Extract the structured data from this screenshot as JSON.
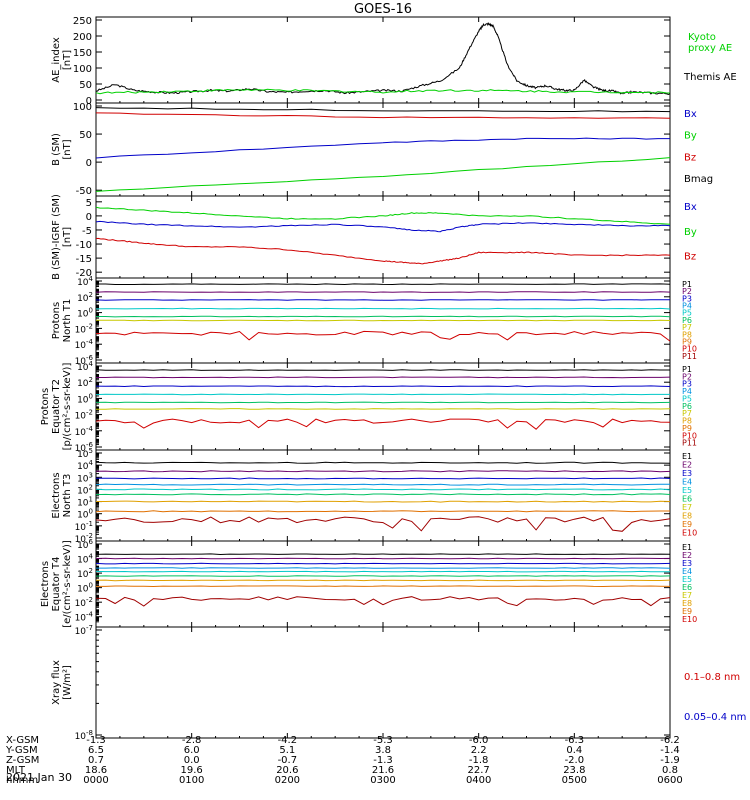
{
  "title": "GOES-16",
  "date_label": "2021 Jan 30",
  "colors": {
    "black": "#000000",
    "green": "#00d000",
    "blue": "#0000c8",
    "red": "#d00000",
    "p_series": [
      "#000000",
      "#6a006a",
      "#0000c8",
      "#0090e0",
      "#00c8c8",
      "#00c060",
      "#c8c800",
      "#e0a000",
      "#e07000",
      "#d00000",
      "#a00000"
    ],
    "e_series": [
      "#000000",
      "#6a006a",
      "#0000c8",
      "#0090e0",
      "#00c8c8",
      "#00c060",
      "#c8c800",
      "#e0a000",
      "#e07000",
      "#d00000",
      "#a00000"
    ]
  },
  "chart_data": [
    {
      "id": "ae",
      "type": "line",
      "ylabel": "AE_index\n[nT]",
      "ylim": [
        0,
        250
      ],
      "yticks": [
        0,
        50,
        100,
        150,
        200,
        250
      ],
      "legend": [
        {
          "name": "Kyoto\nproxy AE",
          "color": "#00d000"
        },
        {
          "name": "Themis AE",
          "color": "#000000"
        }
      ],
      "series": [
        {
          "name": "Themis AE",
          "color": "#000000",
          "x": [
            0,
            0.2,
            0.4,
            0.6,
            0.8,
            1.0,
            1.2,
            1.4,
            1.6,
            1.8,
            2.0,
            2.2,
            2.4,
            2.6,
            2.8,
            3.0,
            3.2,
            3.4,
            3.6,
            3.8,
            3.9,
            4.0,
            4.05,
            4.1,
            4.15,
            4.2,
            4.3,
            4.4,
            4.5,
            4.6,
            4.7,
            4.8,
            4.9,
            5.0,
            5.1,
            5.2,
            5.3,
            5.4,
            5.5,
            5.6,
            5.8,
            6.0
          ],
          "y": [
            28,
            48,
            30,
            25,
            22,
            26,
            30,
            28,
            35,
            26,
            24,
            28,
            30,
            22,
            26,
            30,
            28,
            45,
            60,
            100,
            160,
            215,
            235,
            238,
            232,
            200,
            110,
            60,
            45,
            38,
            45,
            35,
            30,
            30,
            62,
            40,
            30,
            28,
            20,
            25,
            22,
            20
          ]
        },
        {
          "name": "Kyoto proxy AE",
          "color": "#00d000",
          "x": [
            0,
            0.5,
            1.0,
            1.5,
            2.0,
            2.5,
            3.0,
            3.5,
            4.0,
            4.5,
            5.0,
            5.5,
            6.0
          ],
          "y": [
            22,
            25,
            28,
            32,
            30,
            28,
            25,
            30,
            30,
            28,
            25,
            25,
            22
          ]
        }
      ]
    },
    {
      "id": "bsm",
      "type": "line",
      "ylabel": "B (SM)\n[nT]",
      "ylim": [
        -55,
        100
      ],
      "yticks": [
        -50,
        0,
        50,
        100
      ],
      "legend": [
        {
          "name": "Bx",
          "color": "#0000c8"
        },
        {
          "name": "By",
          "color": "#00d000"
        },
        {
          "name": "Bz",
          "color": "#d00000"
        },
        {
          "name": "Bmag",
          "color": "#000000"
        }
      ],
      "series": [
        {
          "name": "Bmag",
          "color": "#000000",
          "x": [
            0,
            3,
            6
          ],
          "y": [
            97,
            92,
            90
          ]
        },
        {
          "name": "Bz",
          "color": "#d00000",
          "x": [
            0,
            3,
            6
          ],
          "y": [
            87,
            80,
            78
          ]
        },
        {
          "name": "Bx",
          "color": "#0000c8",
          "x": [
            0,
            3,
            4.5,
            6
          ],
          "y": [
            8,
            35,
            42,
            42
          ]
        },
        {
          "name": "By",
          "color": "#00d000",
          "x": [
            0,
            3,
            6
          ],
          "y": [
            -52,
            -25,
            8
          ]
        }
      ]
    },
    {
      "id": "bigrf",
      "type": "line",
      "ylabel": "B (SM)-IGRF (SM)\n[nT]",
      "ylim": [
        -21,
        6
      ],
      "yticks": [
        -20,
        -15,
        -10,
        -5,
        0,
        5
      ],
      "legend": [
        {
          "name": "Bx",
          "color": "#0000c8"
        },
        {
          "name": "By",
          "color": "#00d000"
        },
        {
          "name": "Bz",
          "color": "#d00000"
        }
      ],
      "series": [
        {
          "name": "By",
          "color": "#00d000",
          "x": [
            0,
            0.5,
            1.0,
            1.5,
            2.0,
            2.5,
            3.0,
            3.3,
            3.6,
            4.0,
            4.5,
            5.0,
            5.5,
            6.0
          ],
          "y": [
            3,
            2,
            1,
            0,
            -1,
            -1,
            0,
            1,
            1,
            0,
            0,
            -1,
            -2,
            -3
          ]
        },
        {
          "name": "Bx",
          "color": "#0000c8",
          "x": [
            0,
            0.5,
            1.0,
            1.5,
            2.0,
            2.5,
            3.0,
            3.3,
            3.6,
            3.8,
            4.0,
            4.5,
            5.0,
            5.5,
            6.0
          ],
          "y": [
            -2,
            -3,
            -3.5,
            -4,
            -3.5,
            -3,
            -4,
            -5,
            -5.5,
            -4,
            -3,
            -2.5,
            -3,
            -3.5,
            -3.5
          ]
        },
        {
          "name": "Bz",
          "color": "#d00000",
          "x": [
            0,
            0.3,
            0.6,
            1.0,
            1.5,
            2.0,
            2.5,
            3.0,
            3.2,
            3.4,
            3.6,
            3.8,
            4.0,
            4.3,
            4.6,
            5.0,
            5.5,
            6.0
          ],
          "y": [
            -8,
            -9,
            -10,
            -11,
            -11,
            -12,
            -14,
            -16,
            -16.5,
            -17,
            -16,
            -15,
            -13,
            -13,
            -13,
            -14,
            -14,
            -14
          ]
        }
      ]
    },
    {
      "id": "protons_t1",
      "type": "line",
      "scale": "log",
      "ylabel": "Protons\nNorth T1",
      "ylog": [
        -6,
        4
      ],
      "yticks": [
        "10^4",
        "10^2",
        "10^0",
        "10^-2",
        "10^-4",
        "10^-6"
      ],
      "legend": [
        "P1",
        "P2",
        "P3",
        "P4",
        "P5",
        "P6",
        "P7",
        "P8",
        "P9",
        "P10",
        "P11"
      ],
      "levels": [
        3.6,
        2.6,
        1.6,
        0.5,
        -0.5,
        -1.0,
        -2.6
      ]
    },
    {
      "id": "protons_t2",
      "type": "line",
      "scale": "log",
      "ylabel": "Protons\nEquator T2\n[p/(cm²-s-sr-keV)]",
      "ylog": [
        -6,
        4
      ],
      "yticks": [
        "10^4",
        "10^2",
        "10^0",
        "10^-2",
        "10^-4",
        "10^-6"
      ],
      "legend": [
        "P1",
        "P2",
        "P3",
        "P4",
        "P5",
        "P6",
        "P7",
        "P8",
        "P9",
        "P10",
        "P11"
      ],
      "levels": [
        3.5,
        2.6,
        1.5,
        0.5,
        -0.5,
        -1.3,
        -2.8
      ]
    },
    {
      "id": "electrons_t3",
      "type": "line",
      "scale": "log",
      "ylabel": "Electrons\nNorth T3",
      "ylog": [
        -2,
        5
      ],
      "yticks": [
        "10^5",
        "10^4",
        "10^3",
        "10^2",
        "10^1",
        "10^0",
        "10^-1",
        "10^-2"
      ],
      "legend": [
        "E1",
        "E2",
        "E3",
        "E4",
        "E5",
        "E6",
        "E7",
        "E8",
        "E9",
        "E10"
      ],
      "levels": [
        4.2,
        3.5,
        2.9,
        2.4,
        2.0,
        1.6,
        1.0,
        0.2,
        -0.5
      ]
    },
    {
      "id": "electrons_t4",
      "type": "line",
      "scale": "log",
      "ylabel": "Electrons\nEquator T4\n[e/(cm²-s-sr-keV)]",
      "ylog": [
        -5,
        6
      ],
      "yticks": [
        "10^6",
        "10^4",
        "10^2",
        "10^0",
        "10^-2",
        "10^-4"
      ],
      "legend": [
        "E1",
        "E2",
        "E3",
        "E4",
        "E5",
        "E6",
        "E7",
        "E8",
        "E9",
        "E10"
      ],
      "levels": [
        4.6,
        4.0,
        3.3,
        2.7,
        2.2,
        1.6,
        1.0,
        0.2,
        -1.5
      ]
    },
    {
      "id": "xray",
      "type": "line",
      "scale": "log",
      "ylabel": "Xray flux\n[W/m²]",
      "ylog": [
        -8,
        -7
      ],
      "yticks": [
        "10^-7",
        "10^-8"
      ],
      "legend": [
        {
          "name": "0.1–0.8 nm",
          "color": "#d00000"
        },
        {
          "name": "0.05–0.4 nm",
          "color": "#0000c8"
        }
      ]
    }
  ],
  "x_axis": {
    "row_labels": [
      "X-GSM",
      "Y-GSM",
      "Z-GSM",
      "MLT",
      "hhmm"
    ],
    "columns": [
      {
        "X-GSM": "-1.3",
        "Y-GSM": "6.5",
        "Z-GSM": "0.7",
        "MLT": "18.6",
        "hhmm": "0000"
      },
      {
        "X-GSM": "-2.8",
        "Y-GSM": "6.0",
        "Z-GSM": "0.0",
        "MLT": "19.6",
        "hhmm": "0100"
      },
      {
        "X-GSM": "-4.2",
        "Y-GSM": "5.1",
        "Z-GSM": "-0.7",
        "MLT": "20.6",
        "hhmm": "0200"
      },
      {
        "X-GSM": "-5.3",
        "Y-GSM": "3.8",
        "Z-GSM": "-1.3",
        "MLT": "21.6",
        "hhmm": "0300"
      },
      {
        "X-GSM": "-6.0",
        "Y-GSM": "2.2",
        "Z-GSM": "-1.8",
        "MLT": "22.7",
        "hhmm": "0400"
      },
      {
        "X-GSM": "-6.3",
        "Y-GSM": "0.4",
        "Z-GSM": "-2.0",
        "MLT": "23.8",
        "hhmm": "0500"
      },
      {
        "X-GSM": "-6.2",
        "Y-GSM": "-1.4",
        "Z-GSM": "-1.9",
        "MLT": "0.8",
        "hhmm": "0600"
      }
    ]
  }
}
